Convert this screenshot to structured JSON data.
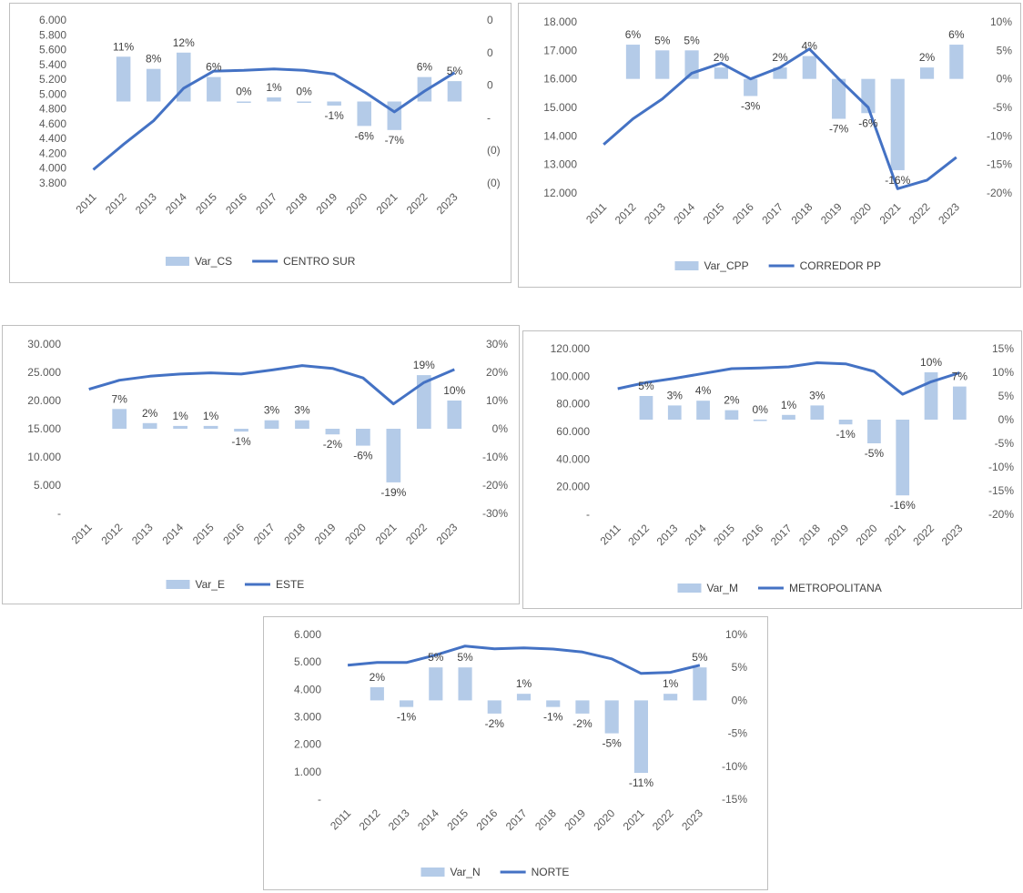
{
  "colors": {
    "bar": "#b4cbe8",
    "line": "#4472c4",
    "text": "#595959",
    "label": "#404040"
  },
  "chart_data": [
    {
      "type": "bar+line",
      "categories": [
        "2011",
        "2012",
        "2013",
        "2014",
        "2015",
        "2016",
        "2017",
        "2018",
        "2019",
        "2020",
        "2021",
        "2022",
        "2023"
      ],
      "series": [
        {
          "name": "Var_CS",
          "kind": "bar",
          "axis": "right",
          "values": [
            null,
            0.11,
            0.08,
            0.12,
            0.06,
            0.0,
            0.01,
            0.0,
            -0.01,
            -0.06,
            -0.07,
            0.06,
            0.05
          ],
          "labels": [
            "",
            "11%",
            "8%",
            "12%",
            "6%",
            "0%",
            "1%",
            "0%",
            "-1%",
            "-6%",
            "-7%",
            "6%",
            "5%"
          ]
        },
        {
          "name": "CENTRO SUR",
          "kind": "line",
          "axis": "left",
          "values": [
            3980,
            4320,
            4640,
            5080,
            5310,
            5320,
            5340,
            5320,
            5270,
            5030,
            4760,
            5040,
            5290
          ]
        }
      ],
      "left_ticks": [
        "6.000",
        "5.800",
        "5.600",
        "5.400",
        "5.200",
        "5.000",
        "4.800",
        "4.600",
        "4.400",
        "4.200",
        "4.000",
        "3.800"
      ],
      "ylim_left": [
        3800,
        6000
      ],
      "right_ticks": [
        "0",
        "0",
        "0",
        "-",
        "(0)",
        "(0)"
      ],
      "ylim_right": [
        -0.2,
        0.2
      ]
    },
    {
      "type": "bar+line",
      "categories": [
        "2011",
        "2012",
        "2013",
        "2014",
        "2015",
        "2016",
        "2017",
        "2018",
        "2019",
        "2020",
        "2021",
        "2022",
        "2023"
      ],
      "series": [
        {
          "name": "Var_CPP",
          "kind": "bar",
          "axis": "right",
          "values": [
            null,
            0.06,
            0.05,
            0.05,
            0.02,
            -0.03,
            0.02,
            0.04,
            -0.07,
            -0.06,
            -0.16,
            0.02,
            0.06
          ],
          "labels": [
            "",
            "6%",
            "5%",
            "5%",
            "2%",
            "-3%",
            "2%",
            "4%",
            "-7%",
            "-6%",
            "-16%",
            "2%",
            "6%"
          ]
        },
        {
          "name": "CORREDOR PP",
          "kind": "line",
          "axis": "left",
          "values": [
            13700,
            14600,
            15300,
            16200,
            16550,
            16000,
            16400,
            17050,
            16000,
            15000,
            12150,
            12450,
            13250
          ]
        }
      ],
      "left_ticks": [
        "18.000",
        "17.000",
        "16.000",
        "15.000",
        "14.000",
        "13.000",
        "12.000"
      ],
      "ylim_left": [
        12000,
        18000
      ],
      "right_ticks": [
        "10%",
        "5%",
        "0%",
        "-5%",
        "-10%",
        "-15%",
        "-20%"
      ],
      "ylim_right": [
        -0.2,
        0.1
      ]
    },
    {
      "type": "bar+line",
      "categories": [
        "2011",
        "2012",
        "2013",
        "2014",
        "2015",
        "2016",
        "2017",
        "2018",
        "2019",
        "2020",
        "2021",
        "2022",
        "2023"
      ],
      "series": [
        {
          "name": "Var_E",
          "kind": "bar",
          "axis": "right",
          "values": [
            null,
            0.07,
            0.02,
            0.01,
            0.01,
            -0.01,
            0.03,
            0.03,
            -0.02,
            -0.06,
            -0.19,
            0.19,
            0.1
          ],
          "labels": [
            "",
            "7%",
            "2%",
            "1%",
            "1%",
            "-1%",
            "3%",
            "3%",
            "-2%",
            "-6%",
            "-19%",
            "19%",
            "10%"
          ]
        },
        {
          "name": "ESTE",
          "kind": "line",
          "axis": "left",
          "values": [
            22000,
            23600,
            24300,
            24700,
            24900,
            24700,
            25400,
            26200,
            25700,
            24000,
            19400,
            23200,
            25500
          ]
        }
      ],
      "left_ticks": [
        "30.000",
        "25.000",
        "20.000",
        "15.000",
        "10.000",
        "5.000",
        "-"
      ],
      "ylim_left": [
        0,
        30000
      ],
      "right_ticks": [
        "30%",
        "20%",
        "10%",
        "0%",
        "-10%",
        "-20%",
        "-30%"
      ],
      "ylim_right": [
        -0.3,
        0.3
      ]
    },
    {
      "type": "bar+line",
      "categories": [
        "2011",
        "2012",
        "2013",
        "2014",
        "2015",
        "2016",
        "2017",
        "2018",
        "2019",
        "2020",
        "2021",
        "2022",
        "2023"
      ],
      "series": [
        {
          "name": "Var_M",
          "kind": "bar",
          "axis": "right",
          "values": [
            null,
            0.05,
            0.03,
            0.04,
            0.02,
            0.0,
            0.01,
            0.03,
            -0.01,
            -0.05,
            -0.16,
            0.1,
            0.07
          ],
          "labels": [
            "",
            "5%",
            "3%",
            "4%",
            "2%",
            "0%",
            "1%",
            "3%",
            "-1%",
            "-5%",
            "-16%",
            "10%",
            "7%"
          ]
        },
        {
          "name": "METROPOLITANA",
          "kind": "line",
          "axis": "left",
          "values": [
            91000,
            95500,
            98500,
            102000,
            105500,
            106000,
            106800,
            109800,
            109000,
            103500,
            87000,
            96000,
            102500
          ]
        }
      ],
      "left_ticks": [
        "120.000",
        "100.000",
        "80.000",
        "60.000",
        "40.000",
        "20.000",
        "-"
      ],
      "ylim_left": [
        0,
        120000
      ],
      "right_ticks": [
        "15%",
        "10%",
        "5%",
        "0%",
        "-5%",
        "-10%",
        "-15%",
        "-20%"
      ],
      "ylim_right": [
        -0.2,
        0.15
      ]
    },
    {
      "type": "bar+line",
      "categories": [
        "2011",
        "2012",
        "2013",
        "2014",
        "2015",
        "2016",
        "2017",
        "2018",
        "2019",
        "2020",
        "2021",
        "2022",
        "2023"
      ],
      "series": [
        {
          "name": "Var_N",
          "kind": "bar",
          "axis": "right",
          "values": [
            null,
            0.02,
            -0.01,
            0.05,
            0.05,
            -0.02,
            0.01,
            -0.01,
            -0.02,
            -0.05,
            -0.11,
            0.01,
            0.05
          ],
          "labels": [
            "",
            "2%",
            "-1%",
            "5%",
            "5%",
            "-2%",
            "1%",
            "-1%",
            "-2%",
            "-5%",
            "-11%",
            "1%",
            "5%"
          ]
        },
        {
          "name": "NORTE",
          "kind": "line",
          "axis": "left",
          "values": [
            4880,
            4980,
            4980,
            5250,
            5580,
            5480,
            5510,
            5470,
            5360,
            5110,
            4580,
            4620,
            4880
          ]
        }
      ],
      "left_ticks": [
        "6.000",
        "5.000",
        "4.000",
        "3.000",
        "2.000",
        "1.000",
        "-"
      ],
      "ylim_left": [
        0,
        6000
      ],
      "right_ticks": [
        "10%",
        "5%",
        "0%",
        "-5%",
        "-10%",
        "-15%"
      ],
      "ylim_right": [
        -0.15,
        0.1
      ]
    }
  ]
}
